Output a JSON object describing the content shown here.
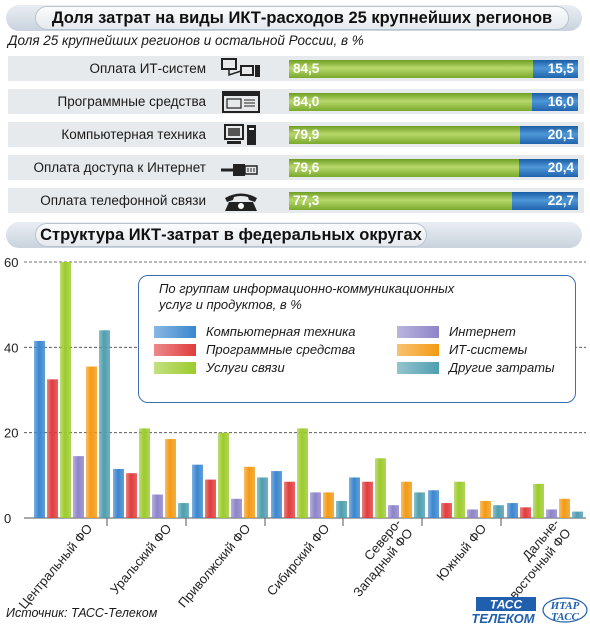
{
  "chart_data": [
    {
      "type": "bar",
      "stacked": true,
      "orientation": "horizontal",
      "title": "Доля затрат на виды ИКТ-расходов 25 крупнейших регионов",
      "subtitle": "Доля 25 крупнейших регионов и остальной России, в %",
      "categories": [
        "Оплата ИТ-систем",
        "Программные средства",
        "Компьютерная техника",
        "Оплата доступа к Интернет",
        "Оплата телефонной связи"
      ],
      "icons": [
        "computer-network-icon",
        "software-window-icon",
        "computer-icon",
        "ethernet-cable-icon",
        "telephone-icon"
      ],
      "series": [
        {
          "values": [
            84.5,
            84.0,
            79.9,
            79.6,
            77.3
          ],
          "labels": [
            "84,5",
            "84,0",
            "79,9",
            "79,6",
            "77,3"
          ],
          "color": "#8fbf3e"
        },
        {
          "values": [
            15.5,
            16.0,
            20.1,
            20.4,
            22.7
          ],
          "labels": [
            "15,5",
            "16,0",
            "20,1",
            "20,4",
            "22,7"
          ],
          "color": "#2e7ac4"
        }
      ],
      "xlim": [
        0,
        100
      ]
    },
    {
      "type": "bar",
      "title": "Структура ИКТ-затрат в федеральных округах",
      "categories": [
        "Центральный ФО",
        "Уральский ФО",
        "Приволжский ФО",
        "Сибирский ФО",
        "Северо-Западный ФО",
        "Южный ФО",
        "Дальне-восточный ФО"
      ],
      "category_lines": [
        [
          "Центральный ФО"
        ],
        [
          "Уральский ФО"
        ],
        [
          "Приволжский ФО"
        ],
        [
          "Сибирский ФО"
        ],
        [
          "Северо-",
          "Западный ФО"
        ],
        [
          "Южный ФО"
        ],
        [
          "Дальне-",
          "восточный ФО"
        ]
      ],
      "yticks": [
        "0",
        "20",
        "40",
        "60"
      ],
      "ylim": [
        0,
        60
      ],
      "legend_title": "По группам информационно-коммуникационных услуг и продуктов, в %",
      "legend_title_lines": [
        "По группам информационно-коммуникационных",
        "услуг и продуктов, в %"
      ],
      "series": [
        {
          "name": "Компьютерная техника",
          "color": "#3a86cf",
          "values": [
            41.5,
            11.5,
            12.5,
            11.0,
            9.5,
            6.5,
            3.5
          ]
        },
        {
          "name": "Программные средства",
          "color": "#e03c3c",
          "values": [
            32.5,
            10.5,
            9.0,
            8.5,
            8.5,
            3.5,
            2.5
          ]
        },
        {
          "name": "Услуги связи",
          "color": "#9ccb2c",
          "values": [
            60.0,
            21.0,
            20.0,
            21.0,
            14.0,
            8.5,
            8.0
          ]
        },
        {
          "name": "Интернет",
          "color": "#8c84c8",
          "values": [
            14.5,
            5.5,
            4.5,
            6.0,
            3.0,
            2.0,
            2.0
          ]
        },
        {
          "name": "ИТ-системы",
          "color": "#f39a14",
          "values": [
            35.5,
            18.5,
            12.0,
            6.0,
            8.5,
            4.0,
            4.5
          ]
        },
        {
          "name": "Другие затраты",
          "color": "#4f9eaf",
          "values": [
            44.0,
            3.5,
            9.5,
            4.0,
            6.0,
            3.0,
            1.5
          ]
        }
      ],
      "grid": true
    }
  ],
  "source": "Источник: ТАСС-Телеком",
  "logos": {
    "tass": "ТАСС",
    "telecom": "ТЕЛЕКОМ",
    "itar_top": "ИТАР",
    "itar_bottom": "ТАСС"
  }
}
